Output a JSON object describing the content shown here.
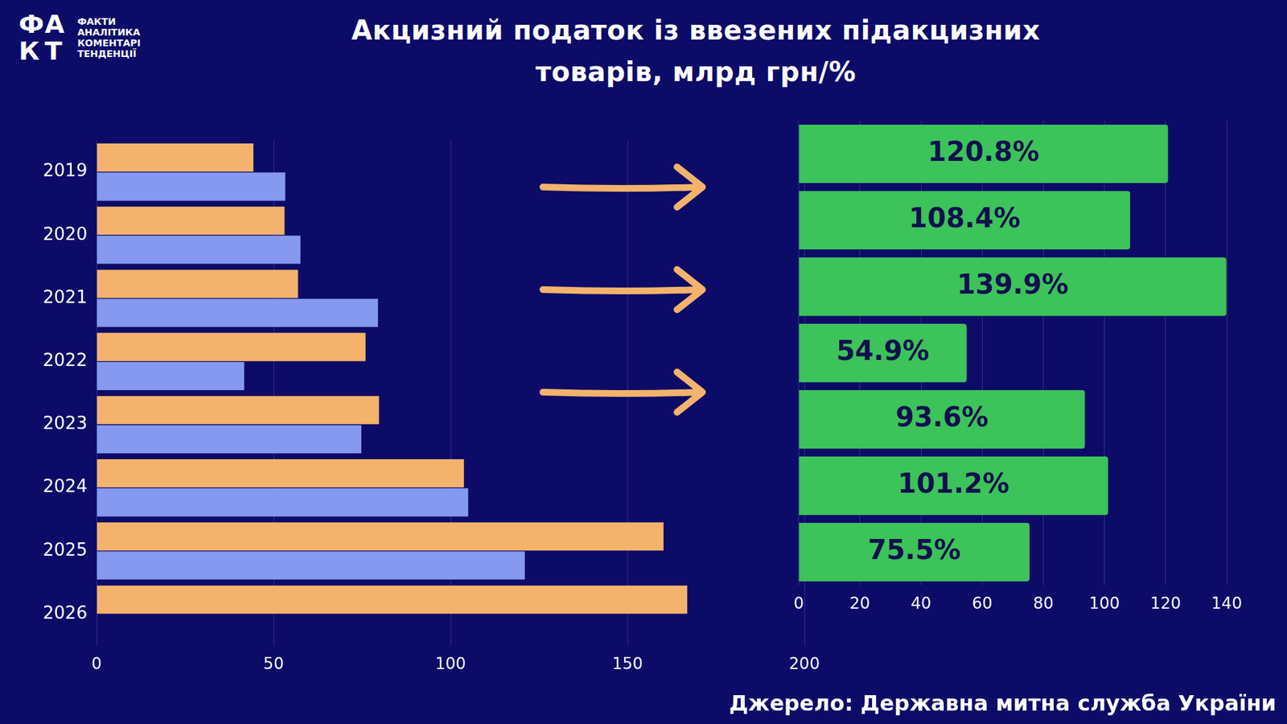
{
  "title": "Акцизний податок із ввезених підакцизних товарів, млрд грн/%",
  "source": "Джерело: Державна митна служба України",
  "logo": {
    "mark": "ФАКТ",
    "lines": [
      "ФАКТИ",
      "АНАЛІТИКА",
      "КОМЕНТАРІ",
      "ТЕНДЕНЦІЇ"
    ]
  },
  "chart_data": [
    {
      "type": "bar",
      "orientation": "horizontal",
      "categories": [
        "2019",
        "2020",
        "2021",
        "2022",
        "2023",
        "2024",
        "2025",
        "2026"
      ],
      "series": [
        {
          "color": "#f4b36c",
          "values": [
            44.3,
            53.1,
            56.9,
            76.0,
            79.8,
            103.8,
            160.2,
            166.9
          ]
        },
        {
          "color": "#8599f1",
          "values": [
            53.3,
            57.6,
            79.5,
            41.7,
            74.8,
            105.0,
            121.0,
            null
          ]
        }
      ],
      "xlim": [
        0,
        200
      ],
      "xticks": [
        0,
        50,
        100,
        150,
        200
      ],
      "grid": true
    },
    {
      "type": "bar",
      "orientation": "horizontal",
      "categories": [
        null,
        null,
        null,
        null,
        null,
        null,
        null
      ],
      "values": [
        120.8,
        108.4,
        139.9,
        54.9,
        93.6,
        101.2,
        75.5
      ],
      "value_labels": [
        "120.8%",
        "108.4%",
        "139.9%",
        "54.9%",
        "93.6%",
        "101.2%",
        "75.5%"
      ],
      "color": "#3cc35a",
      "data_labels": true,
      "tick_labels": "x",
      "xlim": [
        0,
        140
      ],
      "xticks": [
        0,
        20,
        40,
        60,
        80,
        100,
        120,
        140
      ],
      "grid": true
    }
  ]
}
